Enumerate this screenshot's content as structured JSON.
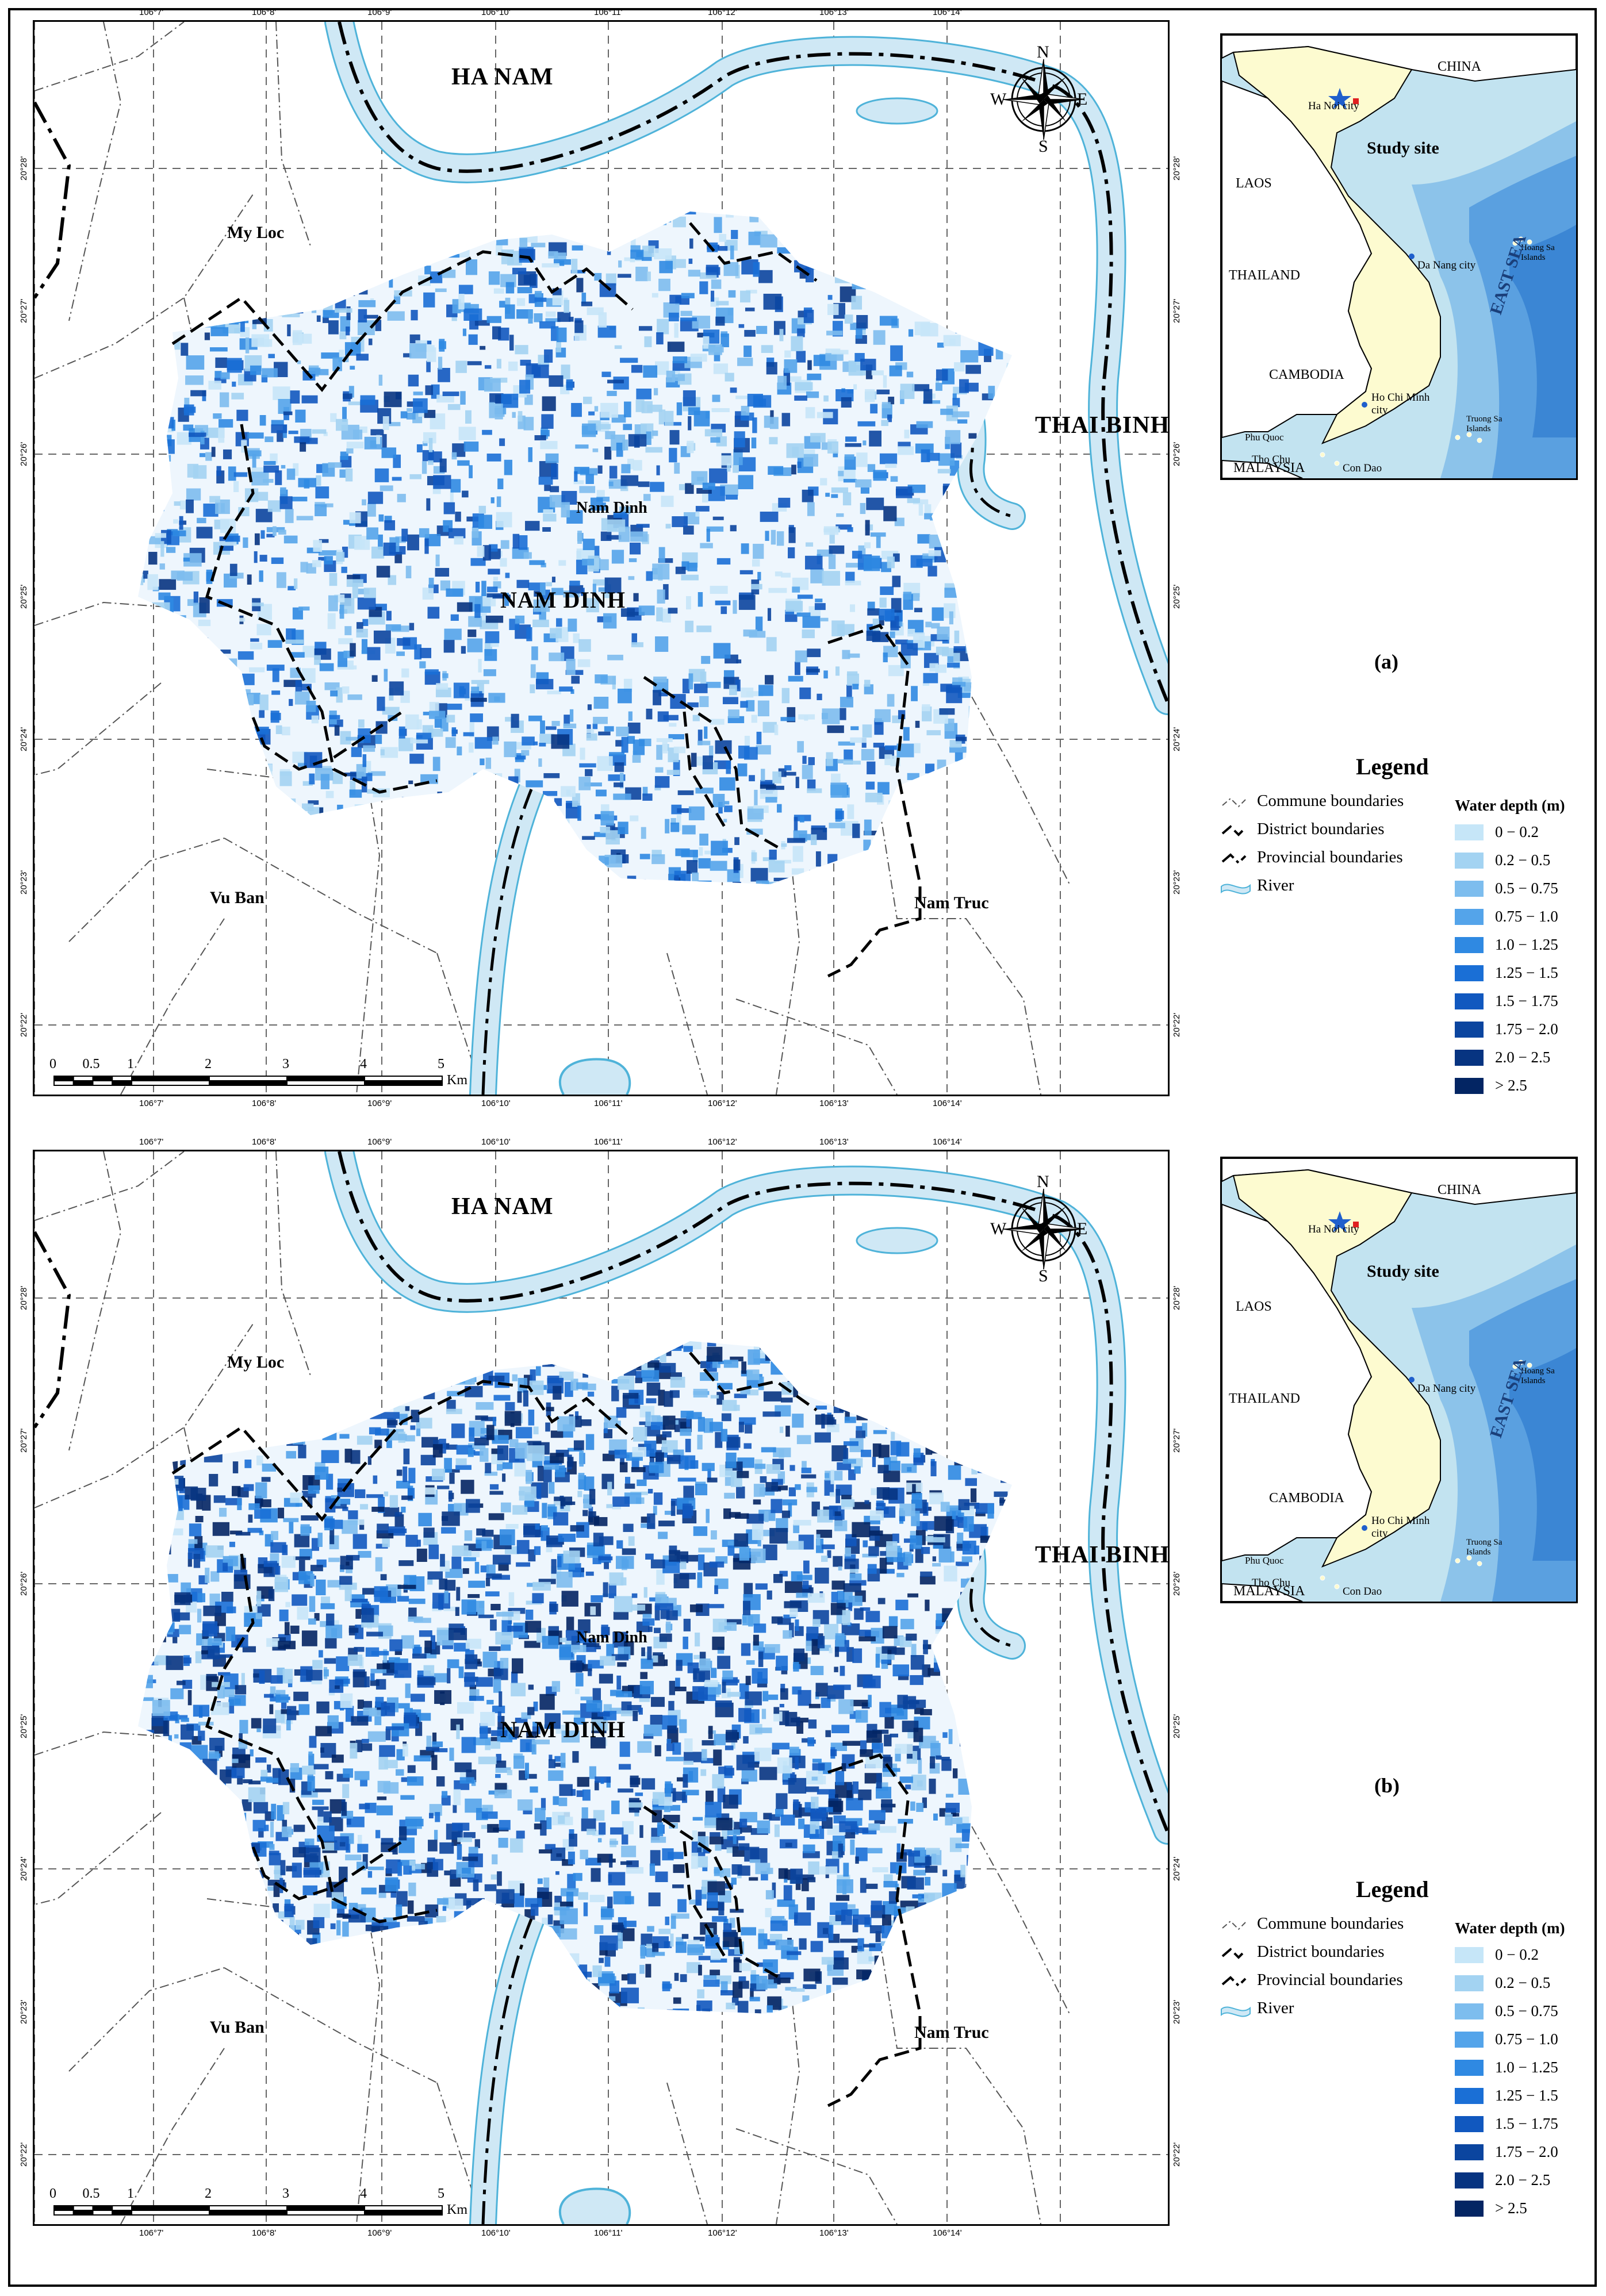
{
  "panels": [
    {
      "panel_label": "(a)",
      "provinces": {
        "ha_nam": "HA NAM",
        "thai_binh": "THAI BINH"
      },
      "districts": {
        "my_loc": "My Loc",
        "vu_ban": "Vu Ban",
        "nam_truc": "Nam Truc",
        "nam_dinh_district": "NAM DINH"
      },
      "city": "Nam Dinh",
      "compass": {
        "n": "N",
        "s": "S",
        "e": "E",
        "w": "W"
      },
      "scale": {
        "labels": [
          "0",
          "0.5",
          "1",
          "2",
          "3",
          "4",
          "5"
        ],
        "unit": "Km"
      },
      "lon_ticks": [
        "106°7'",
        "106°8'",
        "106°9'",
        "106°10'",
        "106°11'",
        "106°12'",
        "106°13'",
        "106°14'"
      ],
      "lat_ticks": [
        "20°28'",
        "20°27'",
        "20°26'",
        "20°25'",
        "20°24'",
        "20°23'",
        "20°22'"
      ],
      "flood_intensity": 0.55
    },
    {
      "panel_label": "(b)",
      "provinces": {
        "ha_nam": "HA NAM",
        "thai_binh": "THAI BINH"
      },
      "districts": {
        "my_loc": "My Loc",
        "vu_ban": "Vu Ban",
        "nam_truc": "Nam Truc",
        "nam_dinh_district": "NAM DINH"
      },
      "city": "Nam Dinh",
      "compass": {
        "n": "N",
        "s": "S",
        "e": "E",
        "w": "W"
      },
      "scale": {
        "labels": [
          "0",
          "0.5",
          "1",
          "2",
          "3",
          "4",
          "5"
        ],
        "unit": "Km"
      },
      "lon_ticks": [
        "106°7'",
        "106°8'",
        "106°9'",
        "106°10'",
        "106°11'",
        "106°12'",
        "106°13'",
        "106°14'"
      ],
      "lat_ticks": [
        "20°28'",
        "20°27'",
        "20°26'",
        "20°25'",
        "20°24'",
        "20°23'",
        "20°22'"
      ],
      "flood_intensity": 0.85
    }
  ],
  "inset": {
    "china": "CHINA",
    "laos": "LAOS",
    "thailand": "THAILAND",
    "cambodia": "CAMBODIA",
    "malaysia": "MALAYSIA",
    "east_sea": "EAST SEA",
    "ha_noi": "Ha Noi city",
    "study_site": "Study site",
    "da_nang": "Da Nang city",
    "hoang_sa": "Hoang Sa Islands",
    "ho_chi_minh": "Ho Chi Minh city",
    "phu_quoc": "Phu Quoc",
    "tho_chu": "Tho Chu",
    "con_dao": "Con Dao",
    "truong_sa": "Truong Sa Islands"
  },
  "legend": {
    "title": "Legend",
    "lines": [
      {
        "label": "Commune boundaries"
      },
      {
        "label": "District boundaries"
      },
      {
        "label": "Provincial boundaries"
      },
      {
        "label": "River"
      }
    ],
    "depth_title": "Water depth (m)",
    "depth_classes": [
      {
        "label": "0 − 0.2",
        "color": "#c6e6f8"
      },
      {
        "label": "0.2 − 0.5",
        "color": "#a3d3f2"
      },
      {
        "label": "0.5 − 0.75",
        "color": "#7dbdee"
      },
      {
        "label": "0.75 − 1.0",
        "color": "#54a4ea"
      },
      {
        "label": "1.0 − 1.25",
        "color": "#2f89e2"
      },
      {
        "label": "1.25 − 1.5",
        "color": "#1a6fd6"
      },
      {
        "label": "1.5 − 1.75",
        "color": "#1158bf"
      },
      {
        "label": "1.75 − 2.0",
        "color": "#0b459f"
      },
      {
        "label": "2.0 − 2.5",
        "color": "#073481"
      },
      {
        "label": "> 2.5",
        "color": "#032563"
      }
    ]
  },
  "colors": {
    "river_fill": "#cfe8f5",
    "river_stroke": "#4fb3d9",
    "land_vn": "#fdfbd0",
    "land_other": "#ffffff",
    "sea_deep": "#3b86d4"
  }
}
